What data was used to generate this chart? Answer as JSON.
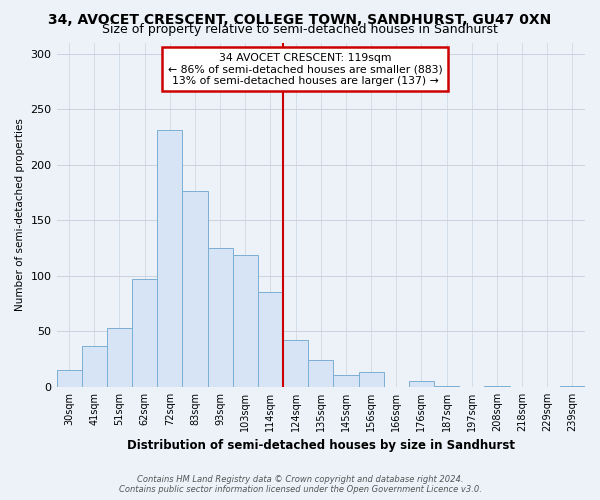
{
  "title1": "34, AVOCET CRESCENT, COLLEGE TOWN, SANDHURST, GU47 0XN",
  "title2": "Size of property relative to semi-detached houses in Sandhurst",
  "xlabel": "Distribution of semi-detached houses by size in Sandhurst",
  "ylabel": "Number of semi-detached properties",
  "bar_labels": [
    "30sqm",
    "41sqm",
    "51sqm",
    "62sqm",
    "72sqm",
    "83sqm",
    "93sqm",
    "103sqm",
    "114sqm",
    "124sqm",
    "135sqm",
    "145sqm",
    "156sqm",
    "166sqm",
    "176sqm",
    "187sqm",
    "197sqm",
    "208sqm",
    "218sqm",
    "229sqm",
    "239sqm"
  ],
  "bar_values": [
    15,
    37,
    53,
    97,
    231,
    176,
    125,
    119,
    85,
    42,
    24,
    11,
    13,
    0,
    5,
    1,
    0,
    1,
    0,
    0,
    1
  ],
  "bar_color": "#d6e4f5",
  "bar_edge_color": "#7bafd4",
  "property_line_x": 8.5,
  "annotation_line1": "34 AVOCET CRESCENT: 119sqm",
  "annotation_line2": "← 86% of semi-detached houses are smaller (883)",
  "annotation_line3": "13% of semi-detached houses are larger (137) →",
  "annotation_box_color": "#ffffff",
  "annotation_box_edge_color": "#cc0000",
  "vline_color": "#cc0000",
  "ylim": [
    0,
    310
  ],
  "grid_color": "#c8d4e0",
  "footnote1": "Contains HM Land Registry data © Crown copyright and database right 2024.",
  "footnote2": "Contains public sector information licensed under the Open Government Licence v3.0.",
  "background_color": "#edf2f9",
  "title1_fontsize": 10,
  "title2_fontsize": 9
}
